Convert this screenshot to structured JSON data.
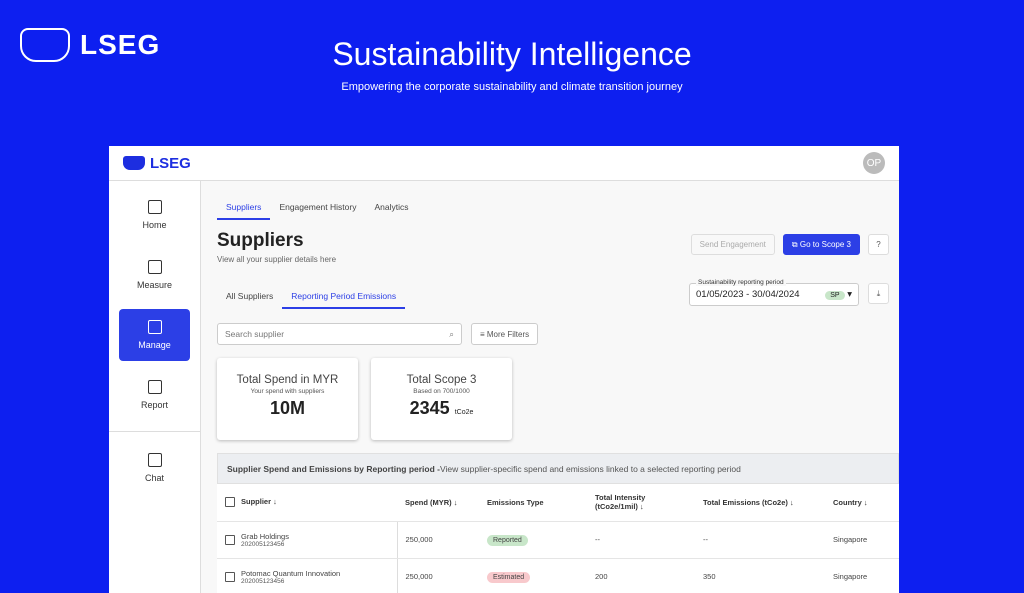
{
  "hero": {
    "logo": "LSEG",
    "title": "Sustainability Intelligence",
    "subtitle": "Empowering the corporate sustainability and climate transition journey"
  },
  "colors": {
    "background": "#0d1ff0",
    "accent": "#2c3fe6",
    "reported": "#c8e6c9",
    "estimated": "#f8c9cc"
  },
  "topbar": {
    "logo": "LSEG",
    "avatar": "OP"
  },
  "sidebar": {
    "items": [
      {
        "label": "Home",
        "icon": "layout-icon"
      },
      {
        "label": "Measure",
        "icon": "document-icon"
      },
      {
        "label": "Manage",
        "icon": "chart-icon",
        "active": true
      },
      {
        "label": "Report",
        "icon": "folder-icon"
      },
      {
        "label": "Chat",
        "icon": "chat-icon"
      }
    ]
  },
  "main": {
    "tabs": [
      "Suppliers",
      "Engagement History",
      "Analytics"
    ],
    "title": "Suppliers",
    "subtitle": "View all your supplier details here",
    "send_engagement": "Send Engagement",
    "go_scope": "Go to Scope 3",
    "subtabs": [
      "All Suppliers",
      "Reporting Period Emissions"
    ],
    "period_label": "Sustainability reporting period",
    "period_value": "01/05/2023 - 30/04/2024",
    "period_badge": "SP",
    "search_placeholder": "Search supplier",
    "more_filters": "More Filters",
    "cards": [
      {
        "title": "Total Spend in MYR",
        "sub": "Your spend with suppliers",
        "value": "10M",
        "unit": ""
      },
      {
        "title": "Total Scope 3",
        "sub": "Based on 700/1000",
        "value": "2345",
        "unit": "tCo2e"
      }
    ],
    "table": {
      "banner_title": "Supplier Spend and Emissions by Reporting period -",
      "banner_desc": " View supplier-specific spend and emissions linked to a selected reporting period",
      "headers": [
        "Supplier ↓",
        "Spend (MYR) ↓",
        "Emissions Type",
        "Total Intensity (tCo2e/1mil) ↓",
        "Total Emissions (tCo2e) ↓",
        "Country ↓"
      ],
      "rows": [
        {
          "name": "Grab Holdings",
          "id": "202005123456",
          "spend": "250,000",
          "type": "Reported",
          "intensity": "--",
          "emissions": "--",
          "country": "Singapore"
        },
        {
          "name": "Potomac Quantum Innovation",
          "id": "202005123456",
          "spend": "250,000",
          "type": "Estimated",
          "intensity": "200",
          "emissions": "350",
          "country": "Singapore"
        }
      ]
    }
  }
}
